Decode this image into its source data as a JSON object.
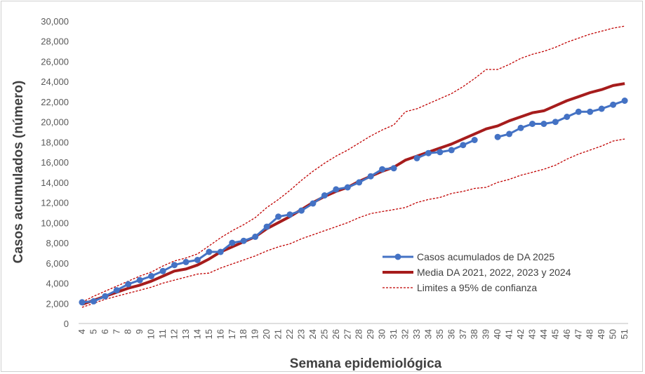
{
  "chart_data": {
    "type": "line",
    "xlabel": "Semana epidemiológica",
    "ylabel": "Casos acumulados (número)",
    "x": [
      4,
      5,
      6,
      7,
      8,
      9,
      10,
      11,
      12,
      13,
      14,
      15,
      16,
      17,
      18,
      19,
      20,
      21,
      22,
      23,
      24,
      25,
      26,
      27,
      28,
      29,
      30,
      31,
      32,
      33,
      34,
      35,
      36,
      37,
      38,
      39,
      40,
      41,
      42,
      43,
      44,
      45,
      46,
      47,
      48,
      49,
      50,
      51
    ],
    "ylim": [
      0,
      30000
    ],
    "yticks": [
      0,
      2000,
      4000,
      6000,
      8000,
      10000,
      12000,
      14000,
      16000,
      18000,
      20000,
      22000,
      24000,
      26000,
      28000,
      30000
    ],
    "ytick_labels": [
      "0",
      "2,000",
      "4,000",
      "6,000",
      "8,000",
      "10,000",
      "12,000",
      "14,000",
      "16,000",
      "18,000",
      "20,000",
      "22,000",
      "24,000",
      "26,000",
      "28,000",
      "30,000"
    ],
    "grid": false,
    "legend_position": "bottom-right",
    "series": [
      {
        "name": "Casos acumulados de DA 2025",
        "color": "#4472c4",
        "style": "line-markers",
        "values": [
          2100,
          2200,
          2700,
          3300,
          3900,
          4300,
          4700,
          5200,
          5800,
          6100,
          6300,
          7100,
          7100,
          8000,
          8200,
          8600,
          9600,
          10600,
          10800,
          11200,
          11900,
          12700,
          13300,
          13500,
          14000,
          14600,
          15300,
          15400,
          null,
          16400,
          16900,
          17000,
          17200,
          17700,
          18200,
          null,
          18500,
          18800,
          19400,
          19800,
          19800,
          20000,
          20500,
          21000,
          21000,
          21300,
          21700,
          22100
        ]
      },
      {
        "name": "Media DA 2021, 2022, 2023 y 2024",
        "color": "#a61c1c",
        "style": "thick-line",
        "values": [
          1900,
          2300,
          2700,
          3100,
          3500,
          3800,
          4200,
          4700,
          5200,
          5400,
          5800,
          6400,
          7100,
          7600,
          8100,
          8600,
          9400,
          10000,
          10600,
          11300,
          12000,
          12600,
          13100,
          13500,
          14100,
          14600,
          15100,
          15500,
          16200,
          16600,
          17000,
          17400,
          17800,
          18300,
          18800,
          19300,
          19600,
          20100,
          20500,
          20900,
          21100,
          21600,
          22100,
          22500,
          22900,
          23200,
          23600,
          23800
        ]
      },
      {
        "name": "Limites a 95% de confianza",
        "color": "#c00000",
        "style": "dashed",
        "upper": [
          2100,
          2700,
          3200,
          3700,
          4200,
          4700,
          5100,
          5700,
          6200,
          6500,
          6900,
          7700,
          8500,
          9200,
          9800,
          10500,
          11500,
          12300,
          13200,
          14200,
          15100,
          15900,
          16600,
          17200,
          17900,
          18600,
          19200,
          19700,
          21000,
          21300,
          21800,
          22300,
          22800,
          23500,
          24300,
          25200,
          25200,
          25700,
          26300,
          26700,
          27000,
          27400,
          27900,
          28300,
          28700,
          29000,
          29300,
          29500
        ],
        "lower": [
          1600,
          2000,
          2400,
          2700,
          3000,
          3300,
          3600,
          4000,
          4300,
          4600,
          4900,
          5000,
          5500,
          5900,
          6300,
          6700,
          7200,
          7600,
          7900,
          8400,
          8800,
          9200,
          9600,
          10000,
          10500,
          10900,
          11100,
          11300,
          11500,
          12000,
          12300,
          12500,
          12900,
          13100,
          13400,
          13500,
          14000,
          14300,
          14700,
          15000,
          15300,
          15700,
          16300,
          16800,
          17200,
          17600,
          18100,
          18300
        ]
      }
    ]
  }
}
